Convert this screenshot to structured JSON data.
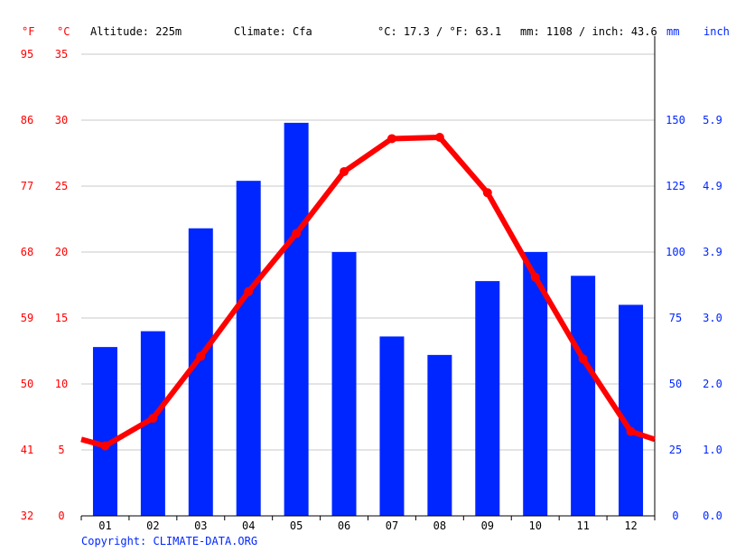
{
  "header": {
    "f_unit": "°F",
    "c_unit": "°C",
    "altitude": "Altitude: 225m",
    "climate": "Climate: Cfa",
    "temp_avg": "°C: 17.3 / °F: 63.1",
    "precip_total": "mm: 1108 / inch: 43.6",
    "mm_unit": "mm",
    "inch_unit": "inch"
  },
  "copyright": "Copyright: CLIMATE-DATA.ORG",
  "chart_data": {
    "type": "bar+line",
    "categories": [
      "01",
      "02",
      "03",
      "04",
      "05",
      "06",
      "07",
      "08",
      "09",
      "10",
      "11",
      "12"
    ],
    "series": [
      {
        "kind": "bar",
        "axis": "mm",
        "values": [
          64,
          70,
          109,
          127,
          149,
          100,
          68,
          61,
          89,
          100,
          91,
          80
        ]
      },
      {
        "kind": "line",
        "axis": "°C",
        "values": [
          5.3,
          7.4,
          12.1,
          17.0,
          21.4,
          26.1,
          28.6,
          28.7,
          24.5,
          18.1,
          11.9,
          6.4
        ]
      }
    ],
    "y_left_c": {
      "range": [
        0,
        35
      ],
      "ticks": [
        0,
        5,
        10,
        15,
        20,
        25,
        30,
        35
      ]
    },
    "y_left_f": {
      "ticks": [
        "32",
        "41",
        "50",
        "59",
        "68",
        "77",
        "86",
        "95"
      ]
    },
    "y_right_mm": {
      "range": [
        0,
        175
      ],
      "ticks": [
        "0",
        "25",
        "50",
        "75",
        "100",
        "125",
        "150"
      ]
    },
    "y_right_inch": {
      "ticks": [
        "0.0",
        "1.0",
        "2.0",
        "3.0",
        "3.9",
        "4.9",
        "5.9"
      ]
    },
    "grid": true,
    "colors": {
      "bar": "#0026ff",
      "line": "#ff0000",
      "temp_axis": "#ff0000",
      "precip_axis": "#0026ff"
    }
  }
}
